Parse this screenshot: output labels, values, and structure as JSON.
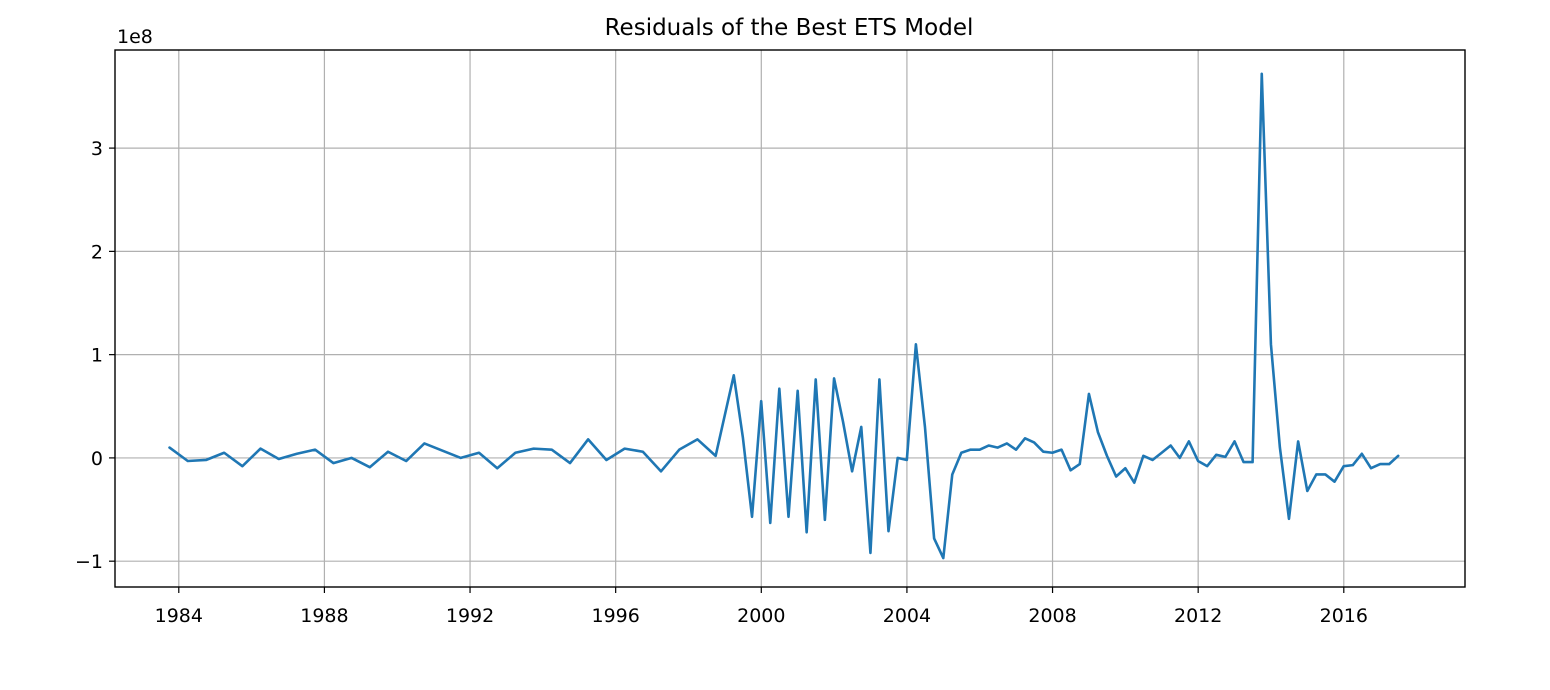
{
  "chart_data": {
    "type": "line",
    "title": "Residuals of the Best ETS Model",
    "xlabel": "",
    "ylabel": "",
    "offset_label": "1e8",
    "x_ticks": [
      "1984",
      "1988",
      "1992",
      "1996",
      "2000",
      "2004",
      "2008",
      "2012",
      "2016"
    ],
    "y_ticks": [
      -1,
      0,
      1,
      2,
      3
    ],
    "y_tick_labels": [
      "−1",
      "0",
      "1",
      "2",
      "3"
    ],
    "xlim": [
      "1982-04-01",
      "2019-05-01"
    ],
    "ylim": [
      -1.25,
      3.95
    ],
    "grid": true,
    "legend": "none",
    "colors": {
      "series": "#1f77b4"
    },
    "series": [
      {
        "x": [
          "1983-09-30",
          "1984-03-31",
          "1984-09-30",
          "1985-03-31",
          "1985-09-30",
          "1986-03-31",
          "1986-09-30",
          "1987-03-31",
          "1987-09-30",
          "1988-03-31",
          "1988-09-30",
          "1989-03-31",
          "1989-09-30",
          "1990-03-31",
          "1990-09-30",
          "1991-03-31",
          "1991-09-30",
          "1992-03-31",
          "1992-09-30",
          "1993-03-31",
          "1993-09-30",
          "1994-03-31",
          "1994-09-30",
          "1995-03-31",
          "1995-09-30",
          "1996-03-31",
          "1996-09-30",
          "1997-03-31",
          "1997-09-30",
          "1998-03-31",
          "1998-09-30",
          "1999-03-31",
          "1999-06-30",
          "1999-09-30",
          "1999-12-31",
          "2000-03-31",
          "2000-06-30",
          "2000-09-30",
          "2000-12-31",
          "2001-03-31",
          "2001-06-30",
          "2001-09-30",
          "2001-12-31",
          "2002-03-31",
          "2002-06-30",
          "2002-09-30",
          "2002-12-31",
          "2003-03-31",
          "2003-06-30",
          "2003-09-30",
          "2003-12-31",
          "2004-03-31",
          "2004-06-30",
          "2004-09-30",
          "2004-12-31",
          "2005-03-31",
          "2005-06-30",
          "2005-09-30",
          "2005-12-31",
          "2006-03-31",
          "2006-06-30",
          "2006-09-30",
          "2006-12-31",
          "2007-03-31",
          "2007-06-30",
          "2007-09-30",
          "2007-12-31",
          "2008-03-31",
          "2008-06-30",
          "2008-09-30",
          "2008-12-31",
          "2009-03-31",
          "2009-06-30",
          "2009-09-30",
          "2009-12-31",
          "2010-03-31",
          "2010-06-30",
          "2010-09-30",
          "2010-12-31",
          "2011-03-31",
          "2011-06-30",
          "2011-09-30",
          "2011-12-31",
          "2012-03-31",
          "2012-06-30",
          "2012-09-30",
          "2012-12-31",
          "2013-03-31",
          "2013-06-30",
          "2013-09-30",
          "2013-12-31",
          "2014-03-31",
          "2014-06-30",
          "2014-09-30",
          "2014-12-31",
          "2015-03-31",
          "2015-06-30",
          "2015-09-30",
          "2015-12-31",
          "2016-03-31",
          "2016-06-30",
          "2016-09-30",
          "2016-12-31",
          "2017-03-31",
          "2017-06-30"
        ],
        "values": [
          0.1,
          -0.03,
          -0.02,
          0.05,
          -0.08,
          0.09,
          -0.01,
          0.04,
          0.08,
          -0.05,
          0.0,
          -0.09,
          0.06,
          -0.03,
          0.14,
          0.07,
          0.0,
          0.05,
          -0.1,
          0.05,
          0.09,
          0.08,
          -0.05,
          0.18,
          -0.02,
          0.09,
          0.06,
          -0.13,
          0.08,
          0.18,
          0.02,
          0.8,
          0.2,
          -0.57,
          0.55,
          -0.63,
          0.67,
          -0.57,
          0.65,
          -0.72,
          0.76,
          -0.6,
          0.77,
          0.35,
          -0.13,
          0.3,
          -0.92,
          0.76,
          -0.71,
          0.0,
          -0.02,
          1.1,
          0.3,
          -0.78,
          -0.97,
          -0.16,
          0.05,
          0.08,
          0.08,
          0.12,
          0.1,
          0.14,
          0.08,
          0.19,
          0.15,
          0.06,
          0.05,
          0.08,
          -0.12,
          -0.06,
          0.62,
          0.25,
          0.02,
          -0.18,
          -0.1,
          -0.24,
          0.02,
          -0.02,
          0.05,
          0.12,
          0.0,
          0.16,
          -0.03,
          -0.08,
          0.03,
          0.01,
          0.16,
          -0.04,
          -0.04,
          3.72,
          1.1,
          0.1,
          -0.59,
          0.16,
          -0.32,
          -0.16,
          -0.16,
          -0.23,
          -0.08,
          -0.07,
          0.04,
          -0.1,
          -0.06,
          -0.06,
          0.02
        ]
      }
    ]
  }
}
